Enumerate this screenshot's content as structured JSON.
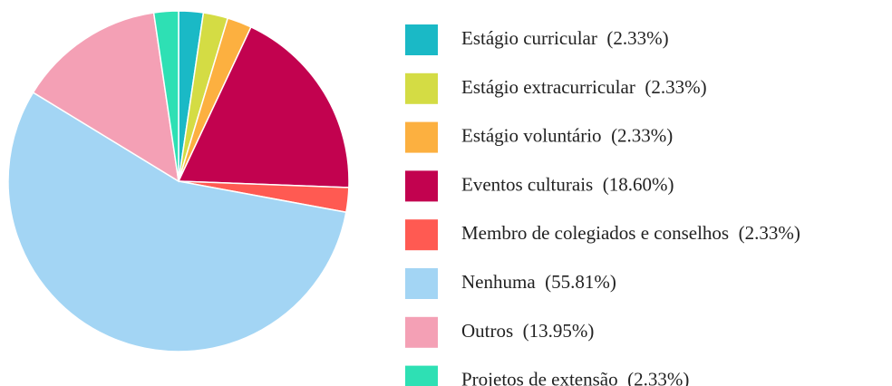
{
  "chart_data": {
    "type": "pie",
    "categories": [
      "Estágio curricular",
      "Estágio extracurricular",
      "Estágio voluntário",
      "Eventos culturais",
      "Membro de colegiados e conselhos",
      "Nenhuma",
      "Outros",
      "Projetos de extensão"
    ],
    "values": [
      2.33,
      2.33,
      2.33,
      18.6,
      2.33,
      55.81,
      13.95,
      2.33
    ],
    "value_labels": [
      "(2.33%)",
      "(2.33%)",
      "(2.33%)",
      "(18.60%)",
      "(2.33%)",
      "(55.81%)",
      "(13.95%)",
      "(2.33%)"
    ],
    "colors": [
      "#1ab9c6",
      "#d4dc44",
      "#fcb040",
      "#c2024f",
      "#ff5a52",
      "#a3d5f4",
      "#f4a0b5",
      "#2ee0b4"
    ],
    "legend": "right"
  }
}
